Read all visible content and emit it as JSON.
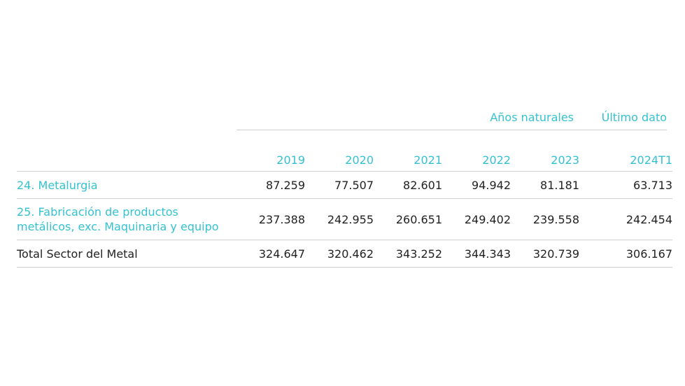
{
  "table": {
    "group_headers": {
      "anos_naturales": "Años naturales",
      "ultimo_dato": "Último dato"
    },
    "columns": [
      "2019",
      "2020",
      "2021",
      "2022",
      "2023",
      "2024T1"
    ],
    "rows": [
      {
        "label": "24. Metalurgia",
        "values": [
          "87.259",
          "77.507",
          "82.601",
          "94.942",
          "81.181",
          "63.713"
        ]
      },
      {
        "label_line1": "25. Fabricación de productos",
        "label_line2": "metálicos, exc. Maquinaria y equipo",
        "values": [
          "237.388",
          "242.955",
          "260.651",
          "249.402",
          "239.558",
          "242.454"
        ]
      },
      {
        "label": "Total Sector del Metal",
        "values": [
          "324.647",
          "320.462",
          "343.252",
          "344.343",
          "320.739",
          "306.167"
        ]
      }
    ]
  },
  "colors": {
    "accent": "#35c2d0",
    "text": "#222222",
    "rule": "#cfcfcf"
  }
}
